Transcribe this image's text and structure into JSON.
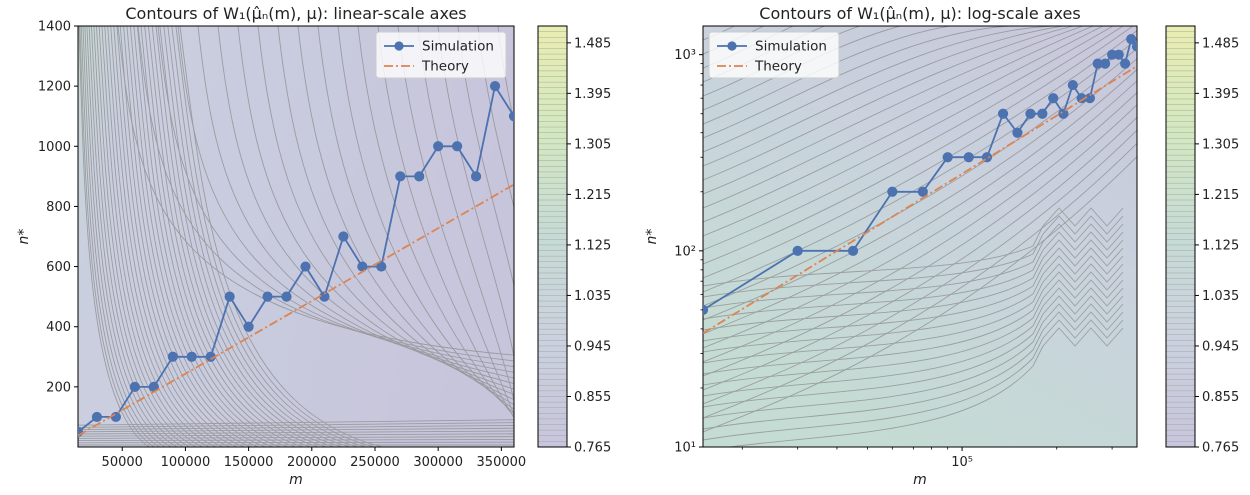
{
  "chart_data": [
    {
      "type": "line",
      "title": "Contours of W₁(μ̂ₙ(m), μ): linear-scale axes",
      "xlabel": "m",
      "ylabel": "n*",
      "xscale": "linear",
      "yscale": "linear",
      "xlim": [
        15000,
        360000
      ],
      "ylim": [
        0,
        1400
      ],
      "xticks": [
        50000,
        100000,
        150000,
        200000,
        250000,
        300000,
        350000
      ],
      "xtick_labels": [
        "50000",
        "100000",
        "150000",
        "200000",
        "250000",
        "300000",
        "350000"
      ],
      "yticks": [
        200,
        400,
        600,
        800,
        1000,
        1200,
        1400
      ],
      "ytick_labels": [
        "200",
        "400",
        "600",
        "800",
        "1000",
        "1200",
        "1400"
      ],
      "legend": "top-right",
      "background": "contour plot with light grey contour lines",
      "series": [
        {
          "name": "Simulation",
          "style": "line-with-markers",
          "color": "#4c72b0",
          "x": [
            15000,
            30000,
            45000,
            60000,
            75000,
            90000,
            105000,
            120000,
            135000,
            150000,
            165000,
            180000,
            195000,
            210000,
            225000,
            240000,
            255000,
            270000,
            285000,
            300000,
            315000,
            330000,
            345000,
            360000
          ],
          "y": [
            50,
            100,
            100,
            200,
            200,
            300,
            300,
            300,
            500,
            400,
            500,
            500,
            600,
            500,
            700,
            600,
            600,
            900,
            900,
            1000,
            1000,
            900,
            1200,
            1100
          ]
        },
        {
          "name": "Theory",
          "style": "dash-dot",
          "color": "#dd8452",
          "x": [
            15000,
            360000
          ],
          "y": [
            38,
            873
          ]
        }
      ],
      "colorbar": {
        "ticks": [
          "0.765",
          "0.855",
          "0.945",
          "1.035",
          "1.125",
          "1.215",
          "1.305",
          "1.395",
          "1.485"
        ],
        "min": 0.765,
        "max": 1.515,
        "colors": [
          "#c7c5dc",
          "#cbd1de",
          "#c6dbd5",
          "#d3e8c0",
          "#e9edb1"
        ]
      }
    },
    {
      "type": "line",
      "title": "Contours of W₁(μ̂ₙ(m), μ): log-scale axes",
      "xlabel": "m",
      "ylabel": "n*",
      "xscale": "log",
      "yscale": "log",
      "xlim": [
        15000,
        360000
      ],
      "ylim": [
        10,
        1400
      ],
      "xticks": [
        100000
      ],
      "xtick_labels": [
        "10⁵"
      ],
      "yticks": [
        10,
        100,
        1000
      ],
      "ytick_labels": [
        "10¹",
        "10²",
        "10³"
      ],
      "legend": "top-left",
      "background": "contour plot with light grey contour lines",
      "series": [
        {
          "name": "Simulation",
          "style": "line-with-markers",
          "color": "#4c72b0",
          "x": [
            15000,
            30000,
            45000,
            60000,
            75000,
            90000,
            105000,
            120000,
            135000,
            150000,
            165000,
            180000,
            195000,
            210000,
            225000,
            240000,
            255000,
            270000,
            285000,
            300000,
            315000,
            330000,
            345000,
            360000
          ],
          "y": [
            50,
            100,
            100,
            200,
            200,
            300,
            300,
            300,
            500,
            400,
            500,
            500,
            600,
            500,
            700,
            600,
            600,
            900,
            900,
            1000,
            1000,
            900,
            1200,
            1100
          ]
        },
        {
          "name": "Theory",
          "style": "dash-dot",
          "color": "#dd8452",
          "x": [
            15000,
            360000
          ],
          "y": [
            38,
            873
          ]
        }
      ],
      "colorbar": {
        "ticks": [
          "0.765",
          "0.855",
          "0.945",
          "1.035",
          "1.125",
          "1.215",
          "1.305",
          "1.395",
          "1.485"
        ],
        "min": 0.765,
        "max": 1.515,
        "colors": [
          "#c7c5dc",
          "#cbd1de",
          "#c6dbd5",
          "#d3e8c0",
          "#e9edb1"
        ]
      }
    }
  ]
}
